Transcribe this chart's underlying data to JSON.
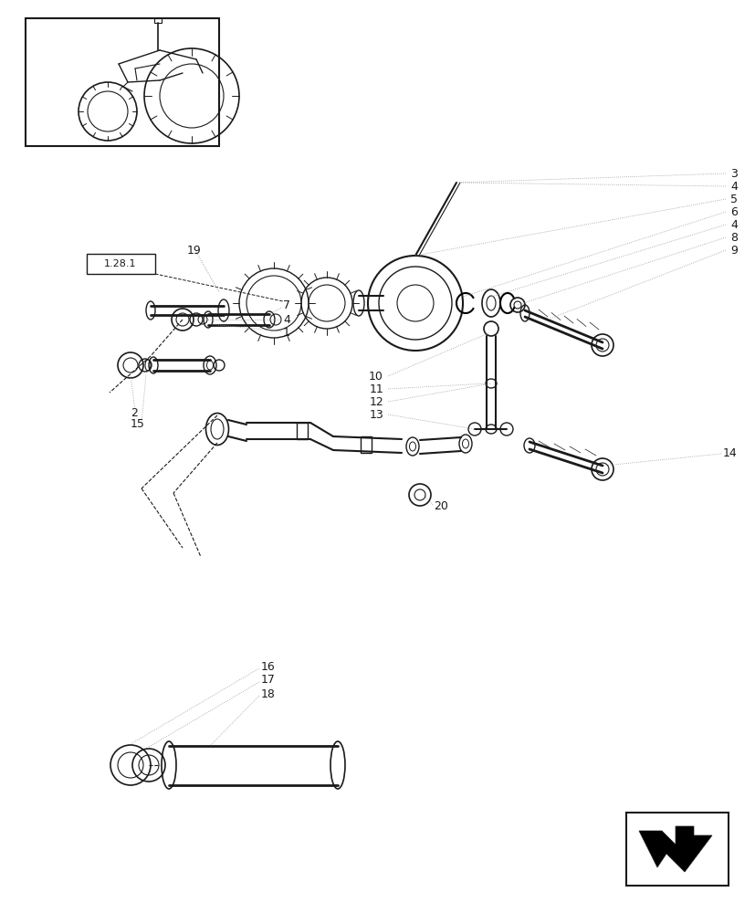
{
  "bg_color": "#ffffff",
  "line_color": "#1a1a1a",
  "gray_color": "#888888",
  "light_gray": "#999999",
  "fig_width": 8.28,
  "fig_height": 10.0,
  "dpi": 100
}
